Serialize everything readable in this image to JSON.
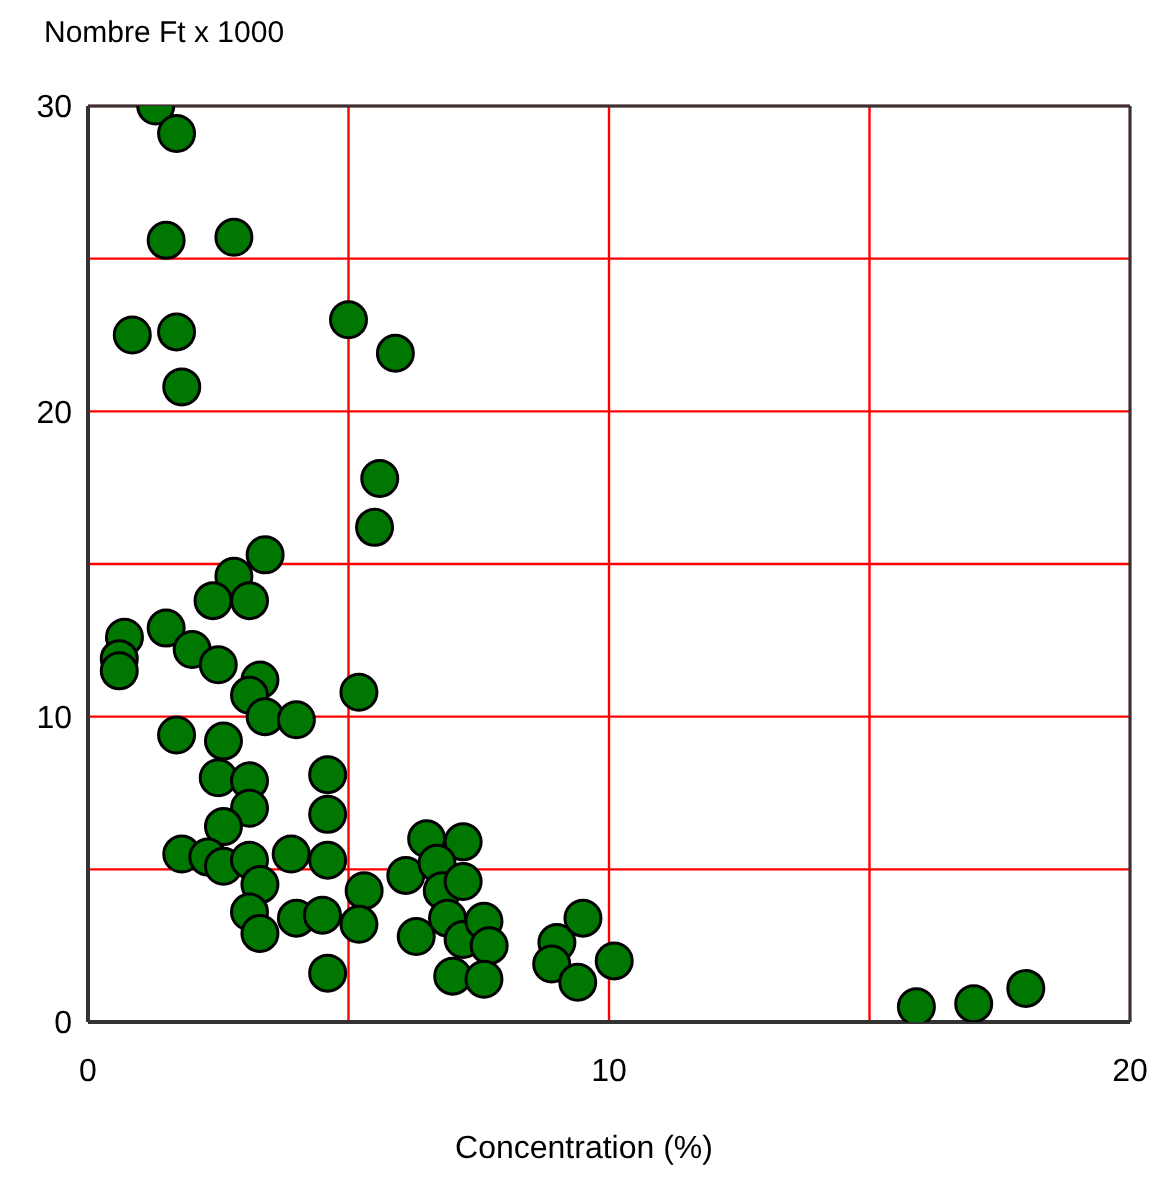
{
  "chart_data": {
    "type": "scatter",
    "ylabel": "Nombre Ft x 1000",
    "xlabel": "Concentration (%)",
    "color": "#007700",
    "marker": "circle",
    "grid": true,
    "xlim": [
      0,
      20
    ],
    "xticks": [
      0,
      {
        "value": 5,
        "label": null
      },
      10,
      {
        "value": 15,
        "label": null
      },
      20
    ],
    "ylim": [
      0,
      30
    ],
    "yticks": [
      0,
      {
        "value": 5,
        "label": null
      },
      10,
      {
        "value": 15,
        "label": null
      },
      20,
      {
        "value": 25,
        "label": null
      },
      30
    ],
    "x": [
      1.3,
      1.7,
      1.5,
      2.8,
      0.85,
      1.7,
      1.8,
      5.0,
      5.9,
      5.6,
      5.5,
      5.2,
      3.4,
      2.8,
      2.4,
      3.1,
      1.5,
      0.7,
      0.6,
      0.6,
      2.0,
      2.5,
      3.3,
      3.1,
      3.4,
      4.0,
      1.7,
      2.6,
      2.5,
      3.1,
      4.6,
      3.1,
      4.6,
      2.6,
      1.8,
      2.3,
      2.6,
      3.1,
      3.9,
      4.6,
      3.3,
      3.1,
      3.3,
      4.0,
      4.5,
      4.6,
      5.3,
      5.2,
      6.1,
      6.5,
      7.2,
      6.7,
      6.8,
      7.2,
      6.3,
      6.9,
      7.2,
      7.6,
      7.7,
      7.0,
      7.6,
      9.0,
      9.5,
      8.9,
      9.4,
      10.1,
      15.9,
      17.0,
      18.0
    ],
    "values": [
      30,
      29.1,
      25.6,
      25.7,
      22.5,
      22.6,
      20.8,
      23.0,
      21.9,
      17.8,
      16.2,
      10.8,
      15.3,
      14.6,
      13.8,
      13.8,
      12.9,
      12.6,
      11.9,
      11.5,
      12.2,
      11.7,
      11.2,
      10.7,
      10.0,
      9.9,
      9.4,
      9.2,
      8.0,
      7.9,
      8.1,
      7.0,
      6.8,
      6.4,
      5.5,
      5.4,
      5.1,
      5.3,
      5.5,
      5.3,
      4.5,
      3.6,
      2.9,
      3.4,
      3.5,
      1.6,
      4.3,
      3.2,
      4.8,
      6.0,
      5.9,
      5.2,
      4.3,
      4.6,
      2.8,
      3.4,
      2.7,
      3.3,
      2.5,
      1.5,
      1.4,
      2.6,
      3.4,
      1.9,
      1.3,
      2.0,
      0.5,
      0.6,
      1.1
    ]
  }
}
